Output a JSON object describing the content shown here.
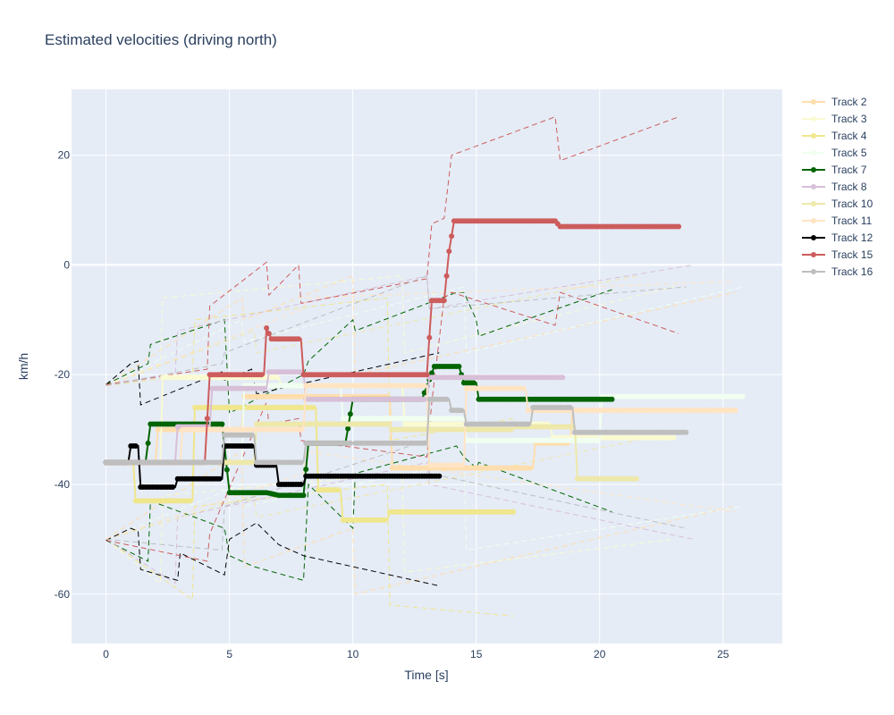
{
  "colors": {
    "background": "#ffffff",
    "plot_background": "#e5ecf6",
    "grid": "#ffffff",
    "text": "#2a3f5f"
  },
  "chart_data": {
    "type": "line",
    "title": "Estimated velocities (driving north)",
    "xlabel": "Time [s]",
    "ylabel": "km/h",
    "xlim": [
      -1.4,
      27.4
    ],
    "ylim": [
      -69,
      32
    ],
    "xticks": [
      0,
      5,
      10,
      15,
      20,
      25
    ],
    "yticks": [
      -60,
      -40,
      -20,
      0,
      20
    ],
    "grid": true,
    "legend_position": "top-right (outside plot)",
    "series": [
      {
        "name": "Track 2",
        "color": "#ffdead",
        "markers": true,
        "x": [
          0,
          2.0,
          2.1,
          5.5,
          5.6,
          11.5,
          11.6,
          16.5,
          17.3,
          17.4,
          18.8,
          18.9,
          25.5
        ],
        "y": [
          -36,
          -36,
          -30,
          -30,
          -24,
          -24,
          -37,
          -37,
          -37,
          -32.5,
          -32.5,
          -26.5,
          -26.5
        ],
        "bounds": [
          {
            "x": [
              0,
              5.5,
              5.6,
              10,
              10.1,
              25.5
            ],
            "y": [
              -22,
              -6,
              -10,
              -2,
              -20,
              -5
            ]
          },
          {
            "x": [
              0,
              5.5,
              5.6,
              10,
              10.1,
              25.5
            ],
            "y": [
              -50,
              -34,
              -55,
              -48,
              -60,
              -44
            ]
          }
        ]
      },
      {
        "name": "Track 3",
        "color": "#fafad2",
        "markers": true,
        "x": [
          0,
          2.2,
          2.3,
          7,
          7.1,
          12,
          12.1,
          18,
          18.1,
          23
        ],
        "y": [
          -36,
          -36,
          -20.5,
          -20.5,
          -22,
          -22,
          -29,
          -29,
          -31.5,
          -31.5
        ],
        "bounds": [
          {
            "x": [
              0,
              2.2,
              2.3,
              12,
              12.1,
              23
            ],
            "y": [
              -22,
              -18,
              -6,
              -2,
              -16,
              -4
            ]
          },
          {
            "x": [
              0,
              2.2,
              2.3,
              12,
              12.1,
              23
            ],
            "y": [
              -50,
              -58,
              -42,
              -38,
              -56,
              -50
            ]
          }
        ]
      },
      {
        "name": "Track 4",
        "color": "#f0e68c",
        "markers": true,
        "x": [
          0,
          1.1,
          1.2,
          3.5,
          3.6,
          8.5,
          8.6,
          9.5,
          9.6,
          11.4,
          11.5,
          16.5
        ],
        "y": [
          -36,
          -36,
          -43,
          -43,
          -26,
          -26,
          -41,
          -41,
          -46.5,
          -46.5,
          -45,
          -45
        ],
        "bounds": [
          {
            "x": [
              0,
              3.5,
              3.6,
              11.4,
              11.5,
              16.5
            ],
            "y": [
              -22,
              -20,
              -10,
              -6,
              -32,
              -28
            ]
          },
          {
            "x": [
              0,
              3.5,
              3.6,
              11.4,
              11.5,
              16.5
            ],
            "y": [
              -50,
              -61,
              -44,
              -40,
              -62,
              -64
            ]
          }
        ]
      },
      {
        "name": "Track 5",
        "color": "#f0fff0",
        "markers": true,
        "x": [
          0,
          5.5,
          5.6,
          9.5,
          9.6,
          14.5,
          14.6,
          20,
          20.1,
          25.8
        ],
        "y": [
          -36,
          -36,
          -22,
          -22,
          -28,
          -28,
          -32,
          -32,
          -24,
          -24
        ],
        "bounds": [
          {
            "x": [
              0,
              5.5,
              5.6,
              14.5,
              14.6,
              25.8
            ],
            "y": [
              -22,
              -10,
              -14,
              -4,
              -16,
              -4
            ]
          },
          {
            "x": [
              0,
              5.5,
              5.6,
              14.5,
              14.6,
              25.8
            ],
            "y": [
              -50,
              -40,
              -44,
              -36,
              -52,
              -44
            ]
          }
        ]
      },
      {
        "name": "Track 7",
        "color": "#006400",
        "markers": true,
        "x": [
          0,
          1.6,
          1.8,
          4.7,
          5.0,
          6.5,
          7.0,
          8.0,
          8.2,
          9.7,
          10.0,
          12.8,
          13.3,
          14.3,
          14.5,
          15.0,
          15.1,
          20.5
        ],
        "y": [
          -36,
          -36,
          -29,
          -29,
          -41.5,
          -41.5,
          -42,
          -42,
          -32.5,
          -32.5,
          -24.5,
          -24.5,
          -18.5,
          -18.5,
          -21.5,
          -21.5,
          -24.5,
          -24.5
        ],
        "bounds": [
          {
            "x": [
              0,
              1.7,
              1.8,
              4.8,
              5.0,
              8.0,
              8.2,
              10.0,
              10.1,
              14.2,
              14.5,
              15.0,
              15.1,
              20.5
            ],
            "y": [
              -21.8,
              -18,
              -14.5,
              -10,
              -27,
              -20,
              -17.5,
              -10,
              -12,
              -5,
              -5,
              -10,
              -13,
              -4.5
            ]
          },
          {
            "x": [
              0,
              1.7,
              1.8,
              4.8,
              5.0,
              6,
              8.0,
              8.2,
              10.0,
              10.1,
              14.2,
              14.5,
              15.0,
              15.1,
              20.5
            ],
            "y": [
              -50.2,
              -54,
              -43,
              -48,
              -53,
              -55,
              -57.5,
              -40,
              -48,
              -38,
              -33,
              -35,
              -37,
              -36,
              -45
            ]
          }
        ]
      },
      {
        "name": "Track 8",
        "color": "#d8bfd8",
        "markers": true,
        "x": [
          0,
          2.8,
          2.9,
          4.2,
          4.3,
          6.5,
          6.6,
          8.0,
          8.1,
          13.0,
          13.1,
          18.5
        ],
        "y": [
          -36,
          -36,
          -29.5,
          -29.5,
          -22.5,
          -22.5,
          -19.5,
          -19.5,
          -24.5,
          -24.5,
          -20.5,
          -20.5
        ],
        "bounds": [
          {
            "x": [
              0,
              2.8,
              2.9,
              13.0,
              13.1,
              23.8
            ],
            "y": [
              -22,
              -20,
              -12,
              -2,
              -8,
              0
            ]
          },
          {
            "x": [
              0,
              2.8,
              2.9,
              13.0,
              13.1,
              23.8
            ],
            "y": [
              -50,
              -58,
              -46,
              -36,
              -40,
              -50
            ]
          }
        ]
      },
      {
        "name": "Track 10",
        "color": "#eee8aa",
        "markers": true,
        "x": [
          0,
          6.0,
          6.1,
          11.5,
          11.6,
          16.5,
          16.6,
          19.0,
          19.1,
          21.5
        ],
        "y": [
          -36,
          -36,
          -29,
          -29,
          -30,
          -30,
          -29.5,
          -29.5,
          -39,
          -39
        ],
        "bounds": [
          {
            "x": [
              0,
              6.0,
              6.1,
              21.5
            ],
            "y": [
              -22,
              -12,
              -16,
              -2
            ]
          },
          {
            "x": [
              0,
              6.0,
              6.1,
              21.5
            ],
            "y": [
              -50,
              -42,
              -46,
              -32
            ]
          }
        ]
      },
      {
        "name": "Track 11",
        "color": "#ffe4c4",
        "markers": true,
        "x": [
          0,
          3.0,
          3.1,
          8.0,
          8.1,
          13.0,
          13.1,
          14.5,
          14.6,
          17.0,
          17.1,
          25.5
        ],
        "y": [
          -36,
          -36,
          -30,
          -30,
          -22,
          -22,
          -36.5,
          -36.5,
          -22.5,
          -22.5,
          -26.5,
          -26.5
        ],
        "bounds": [
          {
            "x": [
              0,
              8.0,
              8.1,
              25.5
            ],
            "y": [
              -22,
              -8,
              -6,
              -3
            ]
          },
          {
            "x": [
              0,
              8.0,
              8.1,
              25.5
            ],
            "y": [
              -50,
              -38,
              -34,
              -45
            ]
          }
        ]
      },
      {
        "name": "Track 12",
        "color": "#000000",
        "markers": true,
        "x": [
          0,
          0.9,
          1.0,
          1.3,
          1.4,
          2.8,
          2.9,
          4.7,
          4.8,
          6.0,
          6.1,
          6.9,
          7.0,
          8.0,
          8.1,
          13.5
        ],
        "y": [
          -36,
          -36,
          -33,
          -33,
          -40.5,
          -40.5,
          -39,
          -39,
          -33,
          -33,
          -36.5,
          -36.5,
          -40,
          -40,
          -38.5,
          -38.5
        ],
        "bounds": [
          {
            "x": [
              0,
              1.0,
              1.3,
              1.4,
              4.7,
              4.8,
              5.9,
              6.1,
              13.5
            ],
            "y": [
              -21.8,
              -18,
              -17.5,
              -25.5,
              -19.5,
              -21,
              -19,
              -23.5,
              -16
            ]
          },
          {
            "x": [
              0,
              1.0,
              1.3,
              1.4,
              2.9,
              3.0,
              4.8,
              5.0,
              6.1,
              7.0,
              8.0,
              13.5
            ],
            "y": [
              -50.2,
              -48,
              -48.5,
              -55.5,
              -57.5,
              -52.5,
              -56.5,
              -50,
              -47,
              -51,
              -53,
              -58.5
            ]
          }
        ]
      },
      {
        "name": "Track 15",
        "color": "#cd5c5c",
        "markers": true,
        "x": [
          0,
          4.0,
          4.2,
          6.4,
          6.5,
          6.7,
          7.0,
          7.9,
          8.0,
          13.0,
          13.2,
          13.7,
          13.9,
          14.1,
          14.3,
          18.2,
          18.4,
          23.2
        ],
        "y": [
          -36,
          -36,
          -20,
          -20,
          -11.5,
          -13.5,
          -13.5,
          -13.5,
          -20,
          -20,
          -6.5,
          -6.5,
          2.5,
          8,
          8,
          8,
          7,
          7
        ],
        "bounds": [
          {
            "x": [
              0,
              4.1,
              4.2,
              6.5,
              6.6,
              7.8,
              7.9,
              13.0,
              13.2,
              13.7,
              14.0,
              18.2,
              18.4,
              23.2
            ],
            "y": [
              -21.8,
              -19,
              -7.5,
              0.5,
              -5.5,
              0,
              -7,
              -2.5,
              7.5,
              8.5,
              20,
              27,
              19,
              27
            ]
          },
          {
            "x": [
              0,
              4.1,
              4.2,
              6.5,
              6.6,
              7.8,
              7.9,
              13.0,
              13.2,
              13.7,
              14.0,
              18.2,
              18.4,
              23.2
            ],
            "y": [
              -50.2,
              -54,
              -49,
              -25,
              -29,
              -28,
              -32,
              -35,
              -25,
              -6,
              -5,
              -11,
              -5,
              -12.5
            ]
          }
        ]
      },
      {
        "name": "Track 16",
        "color": "#bebebe",
        "markers": true,
        "x": [
          0,
          4.7,
          4.8,
          6.0,
          6.1,
          8.0,
          8.1,
          10.0,
          10.1,
          13.0,
          13.1,
          13.9,
          14.0,
          14.5,
          14.6,
          17.2,
          17.3,
          18.9,
          19.0,
          23.5
        ],
        "y": [
          -36,
          -36,
          -31,
          -31,
          -36,
          -36,
          -32.5,
          -32.5,
          -32.5,
          -32.5,
          -24.5,
          -24.5,
          -26.5,
          -26.5,
          -29,
          -29,
          -26,
          -26,
          -30.5,
          -30.5
        ],
        "bounds": [
          {
            "x": [
              0,
              4.7,
              4.8,
              13.0,
              13.1,
              23.5
            ],
            "y": [
              -22,
              -18,
              -16,
              -2,
              -8,
              -4
            ]
          },
          {
            "x": [
              0,
              4.7,
              4.8,
              13.0,
              13.1,
              23.5
            ],
            "y": [
              -50,
              -52,
              -44,
              -32,
              -38,
              -48
            ]
          }
        ]
      }
    ]
  }
}
